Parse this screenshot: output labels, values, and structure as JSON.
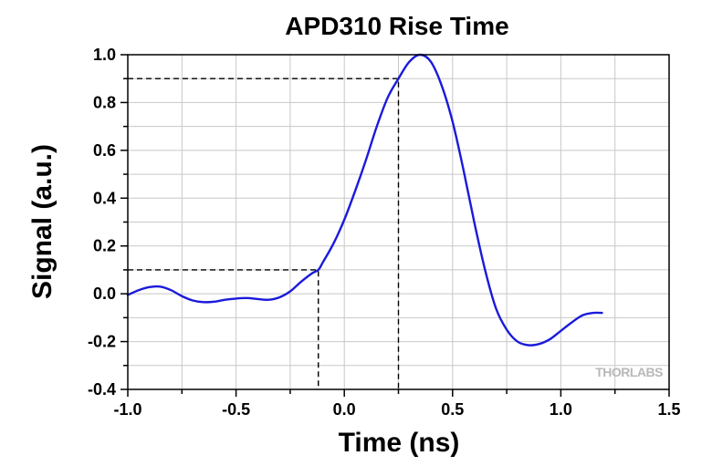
{
  "chart_data": {
    "type": "line",
    "title": "APD310 Rise Time",
    "xlabel": "Time (ns)",
    "ylabel": "Signal (a.u.)",
    "xlim": [
      -1.0,
      1.5
    ],
    "ylim": [
      -0.4,
      1.0
    ],
    "xticks": [
      -1.0,
      -0.5,
      0.0,
      0.5,
      1.0,
      1.5
    ],
    "xtick_labels": [
      "-1.0",
      "-0.5",
      "0.0",
      "0.5",
      "1.0",
      "1.5"
    ],
    "yticks": [
      -0.4,
      -0.2,
      0.0,
      0.2,
      0.4,
      0.6,
      0.8,
      1.0
    ],
    "ytick_labels": [
      "-0.4",
      "-0.2",
      "0.0",
      "0.2",
      "0.4",
      "0.6",
      "0.8",
      "1.0"
    ],
    "grid": true,
    "series": [
      {
        "color": "#1a1adc",
        "x": [
          -1.0,
          -0.95,
          -0.9,
          -0.85,
          -0.8,
          -0.75,
          -0.7,
          -0.65,
          -0.6,
          -0.55,
          -0.5,
          -0.45,
          -0.4,
          -0.35,
          -0.3,
          -0.25,
          -0.2,
          -0.15,
          -0.12,
          -0.1,
          -0.05,
          0.0,
          0.05,
          0.1,
          0.15,
          0.2,
          0.25,
          0.3,
          0.35,
          0.4,
          0.45,
          0.5,
          0.55,
          0.6,
          0.65,
          0.7,
          0.75,
          0.8,
          0.85,
          0.9,
          0.95,
          1.0,
          1.05,
          1.1,
          1.15,
          1.19
        ],
        "y": [
          -0.005,
          0.015,
          0.028,
          0.03,
          0.015,
          -0.01,
          -0.028,
          -0.035,
          -0.033,
          -0.025,
          -0.02,
          -0.018,
          -0.022,
          -0.025,
          -0.015,
          0.01,
          0.05,
          0.085,
          0.1,
          0.13,
          0.21,
          0.31,
          0.43,
          0.56,
          0.7,
          0.82,
          0.9,
          0.97,
          1.0,
          0.97,
          0.87,
          0.72,
          0.52,
          0.3,
          0.1,
          -0.06,
          -0.15,
          -0.2,
          -0.215,
          -0.21,
          -0.19,
          -0.155,
          -0.12,
          -0.09,
          -0.08,
          -0.08
        ]
      }
    ],
    "guides": [
      {
        "y": 0.1,
        "x": -0.12
      },
      {
        "y": 0.9,
        "x": 0.25
      }
    ],
    "watermark": "THORLABS"
  }
}
